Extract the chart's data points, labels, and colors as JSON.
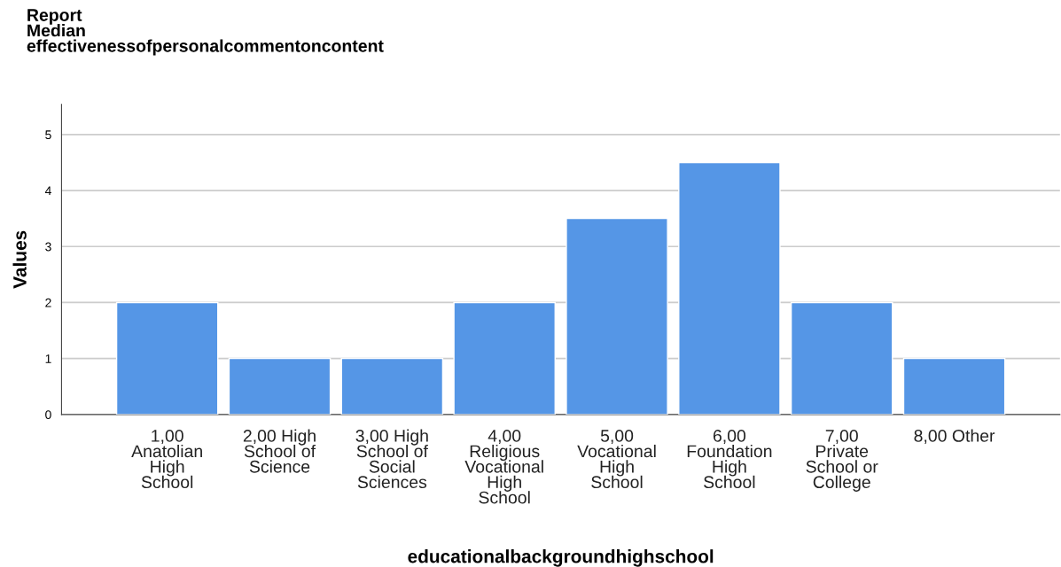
{
  "chart_data": {
    "type": "bar",
    "title": "Report\nMedian\neffectivenessofpersonalcommentoncontent",
    "xlabel": "educationalbackgroundhighschool",
    "ylabel": "Values",
    "categories": [
      "1,00\nAnatolian\nHigh\nSchool",
      "2,00 High\nSchool of\nScience",
      "3,00 High\nSchool of\nSocial\nSciences",
      "4,00\nReligious\nVocational\nHigh\nSchool",
      "5,00\nVocational\nHigh\nSchool",
      "6,00\nFoundation\nHigh\nSchool",
      "7,00\nPrivate\nSchool or\nCollege",
      "8,00 Other"
    ],
    "values": [
      2,
      1,
      1,
      2,
      3.5,
      4.5,
      2,
      1
    ],
    "color": "#5596e6",
    "ylim": [
      0,
      5.54
    ],
    "yticks": [
      0,
      1,
      2,
      3,
      4,
      5
    ],
    "grid": "y"
  }
}
